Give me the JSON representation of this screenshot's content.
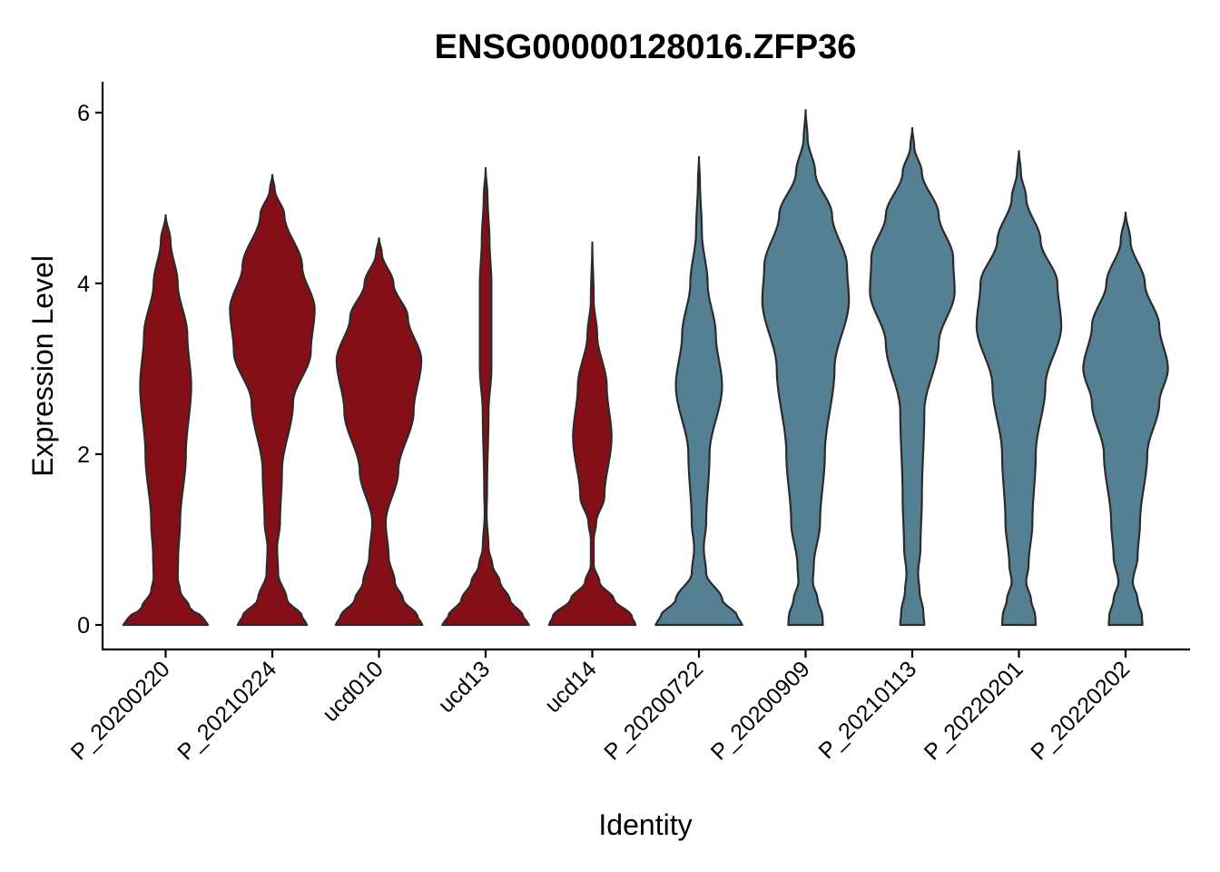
{
  "chart_data": {
    "type": "violin",
    "title": "ENSG00000128016.ZFP36",
    "xlabel": "Identity",
    "ylabel": "Expression Level",
    "ylim": [
      -0.3,
      6.3
    ],
    "yticks": [
      0,
      2,
      4,
      6
    ],
    "grid": false,
    "legend": "none",
    "colors": {
      "group_a": "#840F17",
      "group_b": "#557F93",
      "outline": "#2b2b2b"
    },
    "categories": [
      "P_20200220",
      "P_20210224",
      "ucd010",
      "ucd13",
      "ucd14",
      "P_20200722",
      "P_20200909",
      "P_20210113",
      "P_20220201",
      "P_20220202"
    ],
    "series": [
      {
        "category": "P_20200220",
        "color_group": "group_a",
        "max": 4.8,
        "width_profile": [
          [
            0,
            0.88
          ],
          [
            0.08,
            0.78
          ],
          [
            0.2,
            0.5
          ],
          [
            0.4,
            0.3
          ],
          [
            0.55,
            0.25
          ],
          [
            0.8,
            0.26
          ],
          [
            1.2,
            0.3
          ],
          [
            2.0,
            0.42
          ],
          [
            2.8,
            0.53
          ],
          [
            3.4,
            0.45
          ],
          [
            4.0,
            0.25
          ],
          [
            4.5,
            0.1
          ],
          [
            4.8,
            0.0
          ]
        ]
      },
      {
        "category": "P_20210224",
        "color_group": "group_a",
        "max": 5.27,
        "width_profile": [
          [
            0,
            0.72
          ],
          [
            0.1,
            0.62
          ],
          [
            0.3,
            0.3
          ],
          [
            0.6,
            0.12
          ],
          [
            0.9,
            0.1
          ],
          [
            1.2,
            0.16
          ],
          [
            1.8,
            0.2
          ],
          [
            2.6,
            0.43
          ],
          [
            3.2,
            0.8
          ],
          [
            3.7,
            0.88
          ],
          [
            4.2,
            0.62
          ],
          [
            4.8,
            0.25
          ],
          [
            5.1,
            0.05
          ],
          [
            5.27,
            0.0
          ]
        ]
      },
      {
        "category": "ucd010",
        "color_group": "group_a",
        "max": 4.53,
        "width_profile": [
          [
            0,
            0.9
          ],
          [
            0.1,
            0.8
          ],
          [
            0.3,
            0.5
          ],
          [
            0.5,
            0.33
          ],
          [
            0.8,
            0.2
          ],
          [
            1.2,
            0.14
          ],
          [
            1.8,
            0.4
          ],
          [
            2.5,
            0.72
          ],
          [
            3.1,
            0.88
          ],
          [
            3.6,
            0.6
          ],
          [
            4.0,
            0.3
          ],
          [
            4.35,
            0.06
          ],
          [
            4.53,
            0.0
          ]
        ]
      },
      {
        "category": "ucd13",
        "color_group": "group_a",
        "max": 5.35,
        "width_profile": [
          [
            0,
            0.9
          ],
          [
            0.1,
            0.78
          ],
          [
            0.3,
            0.5
          ],
          [
            0.5,
            0.3
          ],
          [
            0.7,
            0.14
          ],
          [
            0.9,
            0.06
          ],
          [
            1.3,
            0.02
          ],
          [
            1.6,
            0.03
          ],
          [
            2.5,
            0.06
          ],
          [
            3.0,
            0.12
          ],
          [
            4.0,
            0.12
          ],
          [
            4.5,
            0.08
          ],
          [
            5.0,
            0.04
          ],
          [
            5.35,
            0.0
          ]
        ]
      },
      {
        "category": "ucd14",
        "color_group": "group_a",
        "max": 4.48,
        "width_profile": [
          [
            0,
            0.9
          ],
          [
            0.1,
            0.82
          ],
          [
            0.3,
            0.45
          ],
          [
            0.5,
            0.15
          ],
          [
            0.7,
            0.03
          ],
          [
            1.0,
            0.03
          ],
          [
            1.2,
            0.08
          ],
          [
            1.5,
            0.25
          ],
          [
            2.2,
            0.4
          ],
          [
            2.8,
            0.3
          ],
          [
            3.4,
            0.1
          ],
          [
            3.8,
            0.03
          ],
          [
            4.48,
            0.0
          ]
        ]
      },
      {
        "category": "P_20200722",
        "color_group": "group_b",
        "max": 5.48,
        "width_profile": [
          [
            0,
            0.9
          ],
          [
            0.1,
            0.8
          ],
          [
            0.3,
            0.48
          ],
          [
            0.6,
            0.15
          ],
          [
            0.9,
            0.1
          ],
          [
            1.2,
            0.15
          ],
          [
            2.0,
            0.22
          ],
          [
            2.8,
            0.48
          ],
          [
            3.4,
            0.35
          ],
          [
            4.0,
            0.18
          ],
          [
            4.6,
            0.06
          ],
          [
            5.2,
            0.02
          ],
          [
            5.48,
            0.0
          ]
        ]
      },
      {
        "category": "P_20200909",
        "color_group": "group_b",
        "max": 6.03,
        "width_profile": [
          [
            0,
            0.36
          ],
          [
            0.1,
            0.35
          ],
          [
            0.3,
            0.25
          ],
          [
            0.5,
            0.15
          ],
          [
            0.7,
            0.17
          ],
          [
            1.2,
            0.3
          ],
          [
            2.0,
            0.4
          ],
          [
            3.0,
            0.6
          ],
          [
            3.8,
            0.9
          ],
          [
            4.2,
            0.86
          ],
          [
            4.8,
            0.55
          ],
          [
            5.3,
            0.2
          ],
          [
            5.7,
            0.04
          ],
          [
            6.03,
            0.0
          ]
        ]
      },
      {
        "category": "P_20210113",
        "color_group": "group_b",
        "max": 5.82,
        "width_profile": [
          [
            0,
            0.25
          ],
          [
            0.15,
            0.23
          ],
          [
            0.4,
            0.15
          ],
          [
            0.6,
            0.12
          ],
          [
            0.9,
            0.17
          ],
          [
            1.5,
            0.2
          ],
          [
            2.5,
            0.25
          ],
          [
            3.3,
            0.55
          ],
          [
            3.9,
            0.88
          ],
          [
            4.3,
            0.85
          ],
          [
            4.8,
            0.55
          ],
          [
            5.3,
            0.2
          ],
          [
            5.6,
            0.04
          ],
          [
            5.82,
            0.0
          ]
        ]
      },
      {
        "category": "P_20220201",
        "color_group": "group_b",
        "max": 5.55,
        "width_profile": [
          [
            0,
            0.35
          ],
          [
            0.1,
            0.34
          ],
          [
            0.3,
            0.25
          ],
          [
            0.5,
            0.15
          ],
          [
            0.7,
            0.2
          ],
          [
            1.2,
            0.28
          ],
          [
            2.0,
            0.35
          ],
          [
            2.8,
            0.55
          ],
          [
            3.5,
            0.88
          ],
          [
            4.0,
            0.8
          ],
          [
            4.5,
            0.45
          ],
          [
            5.0,
            0.15
          ],
          [
            5.3,
            0.04
          ],
          [
            5.55,
            0.0
          ]
        ]
      },
      {
        "category": "P_20220202",
        "color_group": "group_b",
        "max": 4.83,
        "width_profile": [
          [
            0,
            0.35
          ],
          [
            0.1,
            0.34
          ],
          [
            0.3,
            0.25
          ],
          [
            0.5,
            0.15
          ],
          [
            0.8,
            0.25
          ],
          [
            1.2,
            0.3
          ],
          [
            2.0,
            0.45
          ],
          [
            2.6,
            0.7
          ],
          [
            3.0,
            0.88
          ],
          [
            3.5,
            0.7
          ],
          [
            4.0,
            0.4
          ],
          [
            4.5,
            0.1
          ],
          [
            4.83,
            0.0
          ]
        ]
      }
    ]
  }
}
